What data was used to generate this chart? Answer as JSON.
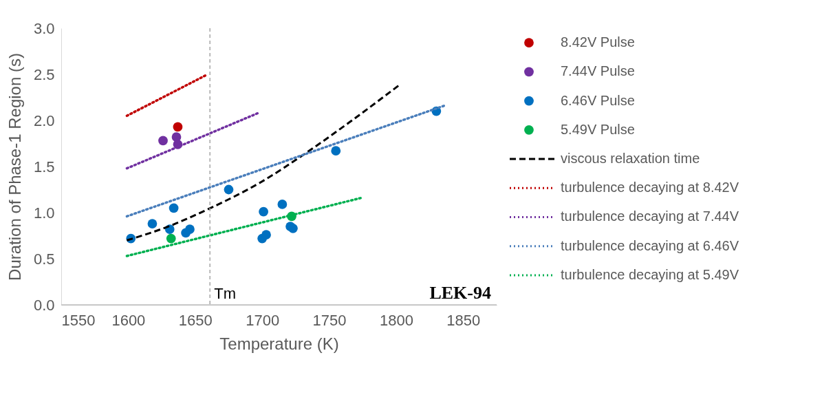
{
  "chart_data": {
    "type": "scatter",
    "xlabel": "Temperature (K)",
    "ylabel": "Duration of Phase-1 Region (s)",
    "xlim": [
      1550,
      1875
    ],
    "xticks": [
      1550,
      1600,
      1650,
      1700,
      1750,
      1800,
      1850
    ],
    "ylim": [
      0,
      3
    ],
    "yticks": [
      {
        "value": 0,
        "label": "0.0"
      },
      {
        "value": 0.5,
        "label": "0.5"
      },
      {
        "value": 1,
        "label": "1.0"
      },
      {
        "value": 1.5,
        "label": "1.5"
      },
      {
        "value": 2,
        "label": "2.0"
      },
      {
        "value": 2.5,
        "label": "2.5"
      },
      {
        "value": 3,
        "label": "3.0"
      }
    ],
    "grid": false,
    "legend": "right",
    "ref_lines": [
      {
        "axis": "x",
        "value": 1661,
        "label": "Tm",
        "color": "#a6a6a6",
        "line_style": "dashed"
      }
    ],
    "annotations": [
      "LEK-94"
    ],
    "series": [
      {
        "name": "8.42V Pulse",
        "marker": "circle",
        "color": "#c00000",
        "x": [
          1637
        ],
        "values": [
          1.93
        ]
      },
      {
        "name": "7.44V Pulse",
        "marker": "circle",
        "color": "#7030a0",
        "x": [
          1626,
          1636,
          1637
        ],
        "values": [
          1.78,
          1.82,
          1.74
        ]
      },
      {
        "name": "6.46V Pulse",
        "marker": "circle",
        "color": "#0070c0",
        "x": [
          1602,
          1618,
          1631,
          1634,
          1643,
          1646,
          1675,
          1701,
          1715,
          1700,
          1703,
          1721,
          1723,
          1755,
          1830
        ],
        "values": [
          0.72,
          0.88,
          0.82,
          1.05,
          0.78,
          0.82,
          1.25,
          1.01,
          1.09,
          0.72,
          0.76,
          0.85,
          0.83,
          1.67,
          2.1
        ]
      },
      {
        "name": "5.49V Pulse",
        "marker": "circle",
        "color": "#00b050",
        "x": [
          1632,
          1722
        ],
        "values": [
          0.72,
          0.96
        ]
      },
      {
        "name": "viscous relaxation time",
        "type": "line",
        "line_style": "dashed",
        "color": "#000000",
        "x": [
          1599,
          1630,
          1660,
          1699,
          1733,
          1767,
          1802
        ],
        "values": [
          0.7,
          0.85,
          1.04,
          1.33,
          1.65,
          2.0,
          2.38
        ]
      },
      {
        "name": "turbulence decaying at 8.42V",
        "type": "line",
        "line_style": "dotted",
        "color": "#c00000",
        "x": [
          1599,
          1658
        ],
        "values": [
          2.05,
          2.49
        ]
      },
      {
        "name": "turbulence decaying at 7.44V",
        "type": "line",
        "line_style": "dotted",
        "color": "#7030a0",
        "x": [
          1599,
          1697
        ],
        "values": [
          1.48,
          2.08
        ]
      },
      {
        "name": "turbulence decaying at 6.46V",
        "type": "line",
        "line_style": "dotted",
        "color": "#4a7ebb",
        "x": [
          1599,
          1836
        ],
        "values": [
          0.96,
          2.16
        ]
      },
      {
        "name": "turbulence decaying at 5.49V",
        "type": "line",
        "line_style": "dotted",
        "color": "#00b050",
        "x": [
          1599,
          1774
        ],
        "values": [
          0.53,
          1.16
        ]
      }
    ]
  }
}
